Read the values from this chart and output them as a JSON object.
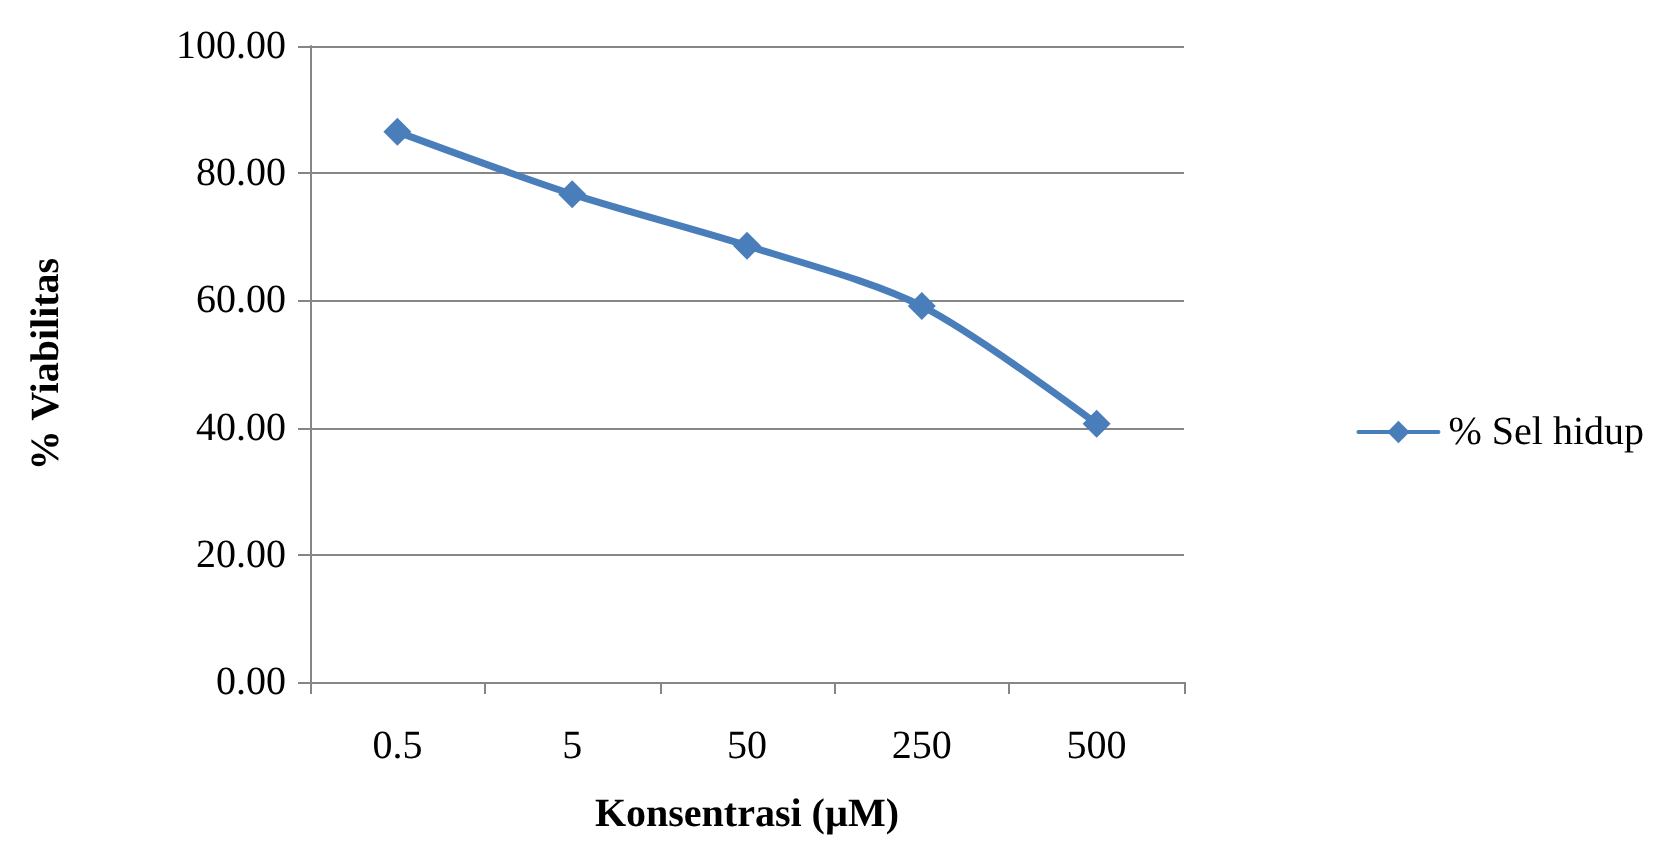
{
  "chart_data": {
    "type": "line",
    "xlabel": "Konsentrasi (µM)",
    "ylabel": "% Viabilitas",
    "categories": [
      "0.5",
      "5",
      "50",
      "250",
      "500"
    ],
    "series": [
      {
        "name": "% Sel hidup",
        "color": "#4a7ebb",
        "values": [
          86.5,
          76.7,
          68.6,
          59.1,
          40.6
        ]
      }
    ],
    "ylim": [
      0,
      100
    ],
    "yticks": [
      {
        "value": 0,
        "label": "0.00"
      },
      {
        "value": 20,
        "label": "20.00"
      },
      {
        "value": 40,
        "label": "40.00"
      },
      {
        "value": 60,
        "label": "60.00"
      },
      {
        "value": 80,
        "label": "80.00"
      },
      {
        "value": 100,
        "label": "100.00"
      }
    ],
    "grid": "y",
    "legend": "right",
    "marker": "diamond",
    "line_style": "solid"
  }
}
